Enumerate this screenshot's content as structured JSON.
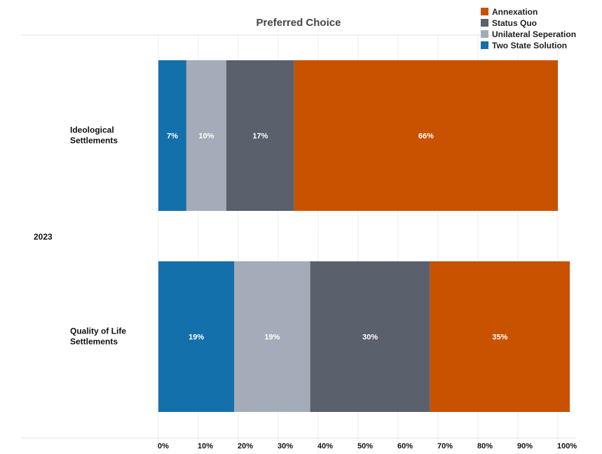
{
  "chart_data": {
    "type": "bar",
    "orientation": "horizontal",
    "stacked": true,
    "title": "Preferred Choice",
    "group_label": "2023",
    "categories": [
      "Ideological Settlements",
      "Quality of Life Settlements"
    ],
    "category_lines": [
      [
        "Ideological",
        "Settlements"
      ],
      [
        "Quality of Life",
        "Settlements"
      ]
    ],
    "series": [
      {
        "name": "Two State Solution",
        "color": "#1470ab",
        "values": [
          7,
          19
        ]
      },
      {
        "name": "Unilateral Seperation",
        "color": "#a3acb8",
        "values": [
          10,
          19
        ]
      },
      {
        "name": "Status Quo",
        "color": "#5a606c",
        "values": [
          17,
          30
        ]
      },
      {
        "name": "Annexation",
        "color": "#c85200",
        "values": [
          66,
          35
        ]
      }
    ],
    "legend_order": [
      "Annexation",
      "Status Quo",
      "Unilateral Seperation",
      "Two State Solution"
    ],
    "legend_position": "top-right",
    "xlim": [
      0,
      100
    ],
    "x_ticks": [
      0,
      10,
      20,
      30,
      40,
      50,
      60,
      70,
      80,
      90,
      100
    ],
    "x_tick_labels": [
      "0%",
      "10%",
      "20%",
      "30%",
      "40%",
      "50%",
      "60%",
      "70%",
      "80%",
      "90%",
      "100%"
    ],
    "grid": true
  }
}
